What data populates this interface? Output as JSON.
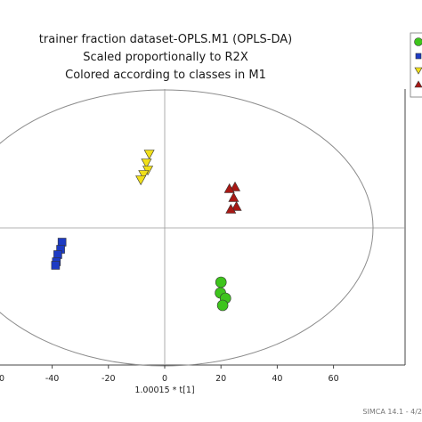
{
  "chart_data": {
    "type": "scatter",
    "title_lines": [
      "trainer fraction dataset-OPLS.M1 (OPLS-DA)",
      "Scaled proportionally to R2X",
      "Colored according to classes in M1"
    ],
    "xlabel": "1.00015 * t[1]",
    "xlim": [
      -60,
      80
    ],
    "x_ticks": [
      -40,
      -20,
      0,
      20,
      40,
      60
    ],
    "x_tick_labels": [
      "-40",
      "-20",
      "0",
      "20",
      "40",
      "60"
    ],
    "first_tick_label_fragment": "0",
    "grid": false,
    "series": [
      {
        "color": "#1d3bc4",
        "marker": "square",
        "points": [
          [
            -36.5,
            -1.6
          ],
          [
            -37,
            -2.4
          ],
          [
            -38,
            -3.0
          ],
          [
            -38.5,
            -3.8
          ],
          [
            -38.8,
            -4.2
          ]
        ]
      },
      {
        "color": "#f0df1a",
        "marker": "triangle-down",
        "points": [
          [
            -5.5,
            8.3
          ],
          [
            -6.5,
            7.3
          ],
          [
            -6,
            6.5
          ],
          [
            -7.5,
            6.0
          ],
          [
            -8.5,
            5.4
          ]
        ]
      },
      {
        "color": "#a81814",
        "marker": "triangle-up",
        "points": [
          [
            25,
            4.6
          ],
          [
            23,
            4.4
          ],
          [
            24.5,
            3.4
          ],
          [
            25.5,
            2.4
          ],
          [
            23.5,
            2.1
          ]
        ]
      },
      {
        "color": "#3ec41c",
        "marker": "circle",
        "points": [
          [
            20,
            -6.1
          ],
          [
            19.8,
            -7.3
          ],
          [
            21.6,
            -7.9
          ],
          [
            20.6,
            -8.7
          ]
        ]
      }
    ],
    "ellipse": {
      "cx": 10,
      "cy": 0,
      "rx": 74,
      "ry": 15.5
    },
    "legend_placement": "top-right (clipped)",
    "legend_colors": [
      "#3ec41c",
      "#1d3bc4",
      "#f0df1a",
      "#a81814"
    ]
  },
  "footer": "SIMCA 14.1 - 4/2"
}
